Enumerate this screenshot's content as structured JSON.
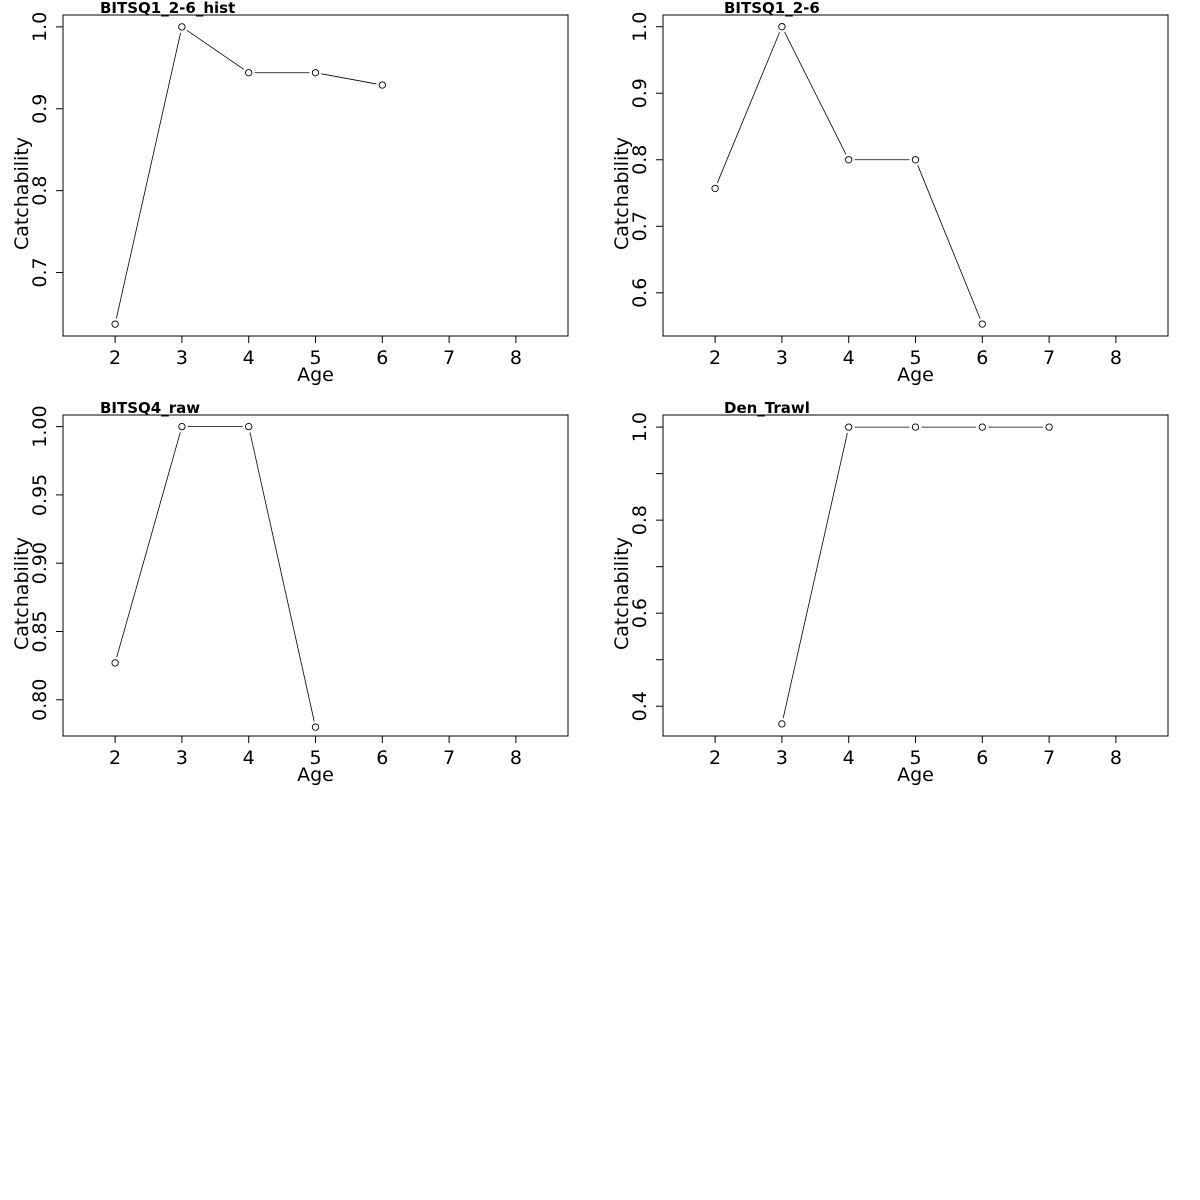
{
  "chart_data": [
    {
      "type": "line",
      "title": "BITSQ1_2-6_hist",
      "xlabel": "Age",
      "ylabel": "Catchability",
      "xlim": [
        1.22,
        8.78
      ],
      "ylim": [
        0.6225,
        1.0145
      ],
      "xticks": [
        2,
        3,
        4,
        5,
        6,
        7,
        8
      ],
      "yticks": [
        0.7,
        0.8,
        0.9,
        1.0
      ],
      "ytick_labels": [
        "0.7",
        "0.8",
        "0.9",
        "1.0"
      ],
      "grid": false,
      "series": [
        {
          "x": [
            2,
            3,
            4,
            5,
            6
          ],
          "y": [
            0.637,
            1.0,
            0.944,
            0.944,
            0.929
          ]
        }
      ]
    },
    {
      "type": "line",
      "title": "BITSQ1_2-6",
      "xlabel": "Age",
      "ylabel": "Catchability",
      "xlim": [
        1.22,
        8.78
      ],
      "ylim": [
        0.5351,
        1.0176
      ],
      "xticks": [
        2,
        3,
        4,
        5,
        6,
        7,
        8
      ],
      "yticks": [
        0.6,
        0.7,
        0.8,
        0.9,
        1.0
      ],
      "ytick_labels": [
        "0.6",
        "0.7",
        "0.8",
        "0.9",
        "1.0"
      ],
      "grid": false,
      "series": [
        {
          "x": [
            2,
            3,
            4,
            5,
            6
          ],
          "y": [
            0.757,
            1.0,
            0.8,
            0.8,
            0.553
          ]
        }
      ]
    },
    {
      "type": "line",
      "title": "BITSQ4_raw",
      "xlabel": "Age",
      "ylabel": "Catchability",
      "xlim": [
        1.22,
        8.78
      ],
      "ylim": [
        0.7735,
        1.0085
      ],
      "xticks": [
        2,
        3,
        4,
        5,
        6,
        7,
        8
      ],
      "yticks": [
        0.8,
        0.85,
        0.9,
        0.95,
        1.0
      ],
      "ytick_labels": [
        "0.80",
        "0.85",
        "0.90",
        "0.95",
        "1.00"
      ],
      "grid": false,
      "series": [
        {
          "x": [
            2,
            3,
            4,
            5
          ],
          "y": [
            0.827,
            1.0,
            1.0,
            0.78
          ]
        }
      ]
    },
    {
      "type": "line",
      "title": "Den_Trawl",
      "xlabel": "Age",
      "ylabel": "Catchability",
      "xlim": [
        1.22,
        8.78
      ],
      "ylim": [
        0.336,
        1.026
      ],
      "xticks": [
        2,
        3,
        4,
        5,
        6,
        7,
        8
      ],
      "yticks": [
        0.4,
        0.5,
        0.6,
        0.7,
        0.8,
        0.9,
        1.0
      ],
      "ytick_labels": [
        "0.4",
        "",
        "0.6",
        "",
        "0.8",
        "",
        "1.0"
      ],
      "grid": false,
      "series": [
        {
          "x": [
            3,
            4,
            5,
            6,
            7
          ],
          "y": [
            0.362,
            1.0,
            1.0,
            1.0,
            1.0
          ]
        }
      ]
    }
  ]
}
